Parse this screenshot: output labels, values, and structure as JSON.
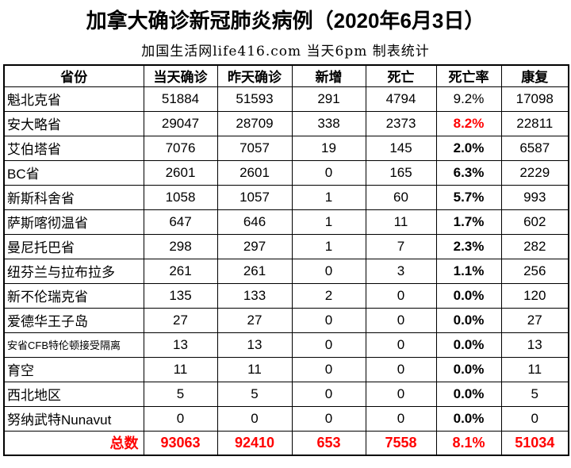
{
  "page": {
    "title": "加拿大确诊新冠肺炎病例（2020年6月3日）",
    "subtitle": "加国生活网life416.com 当天6pm 制表统计"
  },
  "colors": {
    "highlight_red": "#ff0000",
    "text": "#000000",
    "border": "#000000",
    "background": "#ffffff"
  },
  "table": {
    "columns": [
      {
        "key": "province",
        "label": "省份"
      },
      {
        "key": "today",
        "label": "当天确诊"
      },
      {
        "key": "yesterday",
        "label": "昨天确诊"
      },
      {
        "key": "new",
        "label": "新增"
      },
      {
        "key": "deaths",
        "label": "死亡"
      },
      {
        "key": "death_rate",
        "label": "死亡率"
      },
      {
        "key": "recovered",
        "label": "康复"
      }
    ],
    "rows": [
      {
        "province": "魁北克省",
        "today": "51884",
        "yesterday": "51593",
        "new": "291",
        "deaths": "4794",
        "death_rate": "9.2%",
        "recovered": "17098",
        "rate_emphasis": "regular"
      },
      {
        "province": "安大略省",
        "today": "29047",
        "yesterday": "28709",
        "new": "338",
        "deaths": "2373",
        "death_rate": "8.2%",
        "recovered": "22811",
        "rate_emphasis": "red"
      },
      {
        "province": "艾伯塔省",
        "today": "7076",
        "yesterday": "7057",
        "new": "19",
        "deaths": "145",
        "death_rate": "2.0%",
        "recovered": "6587",
        "rate_emphasis": "bold"
      },
      {
        "province": "BC省",
        "today": "2601",
        "yesterday": "2601",
        "new": "0",
        "deaths": "165",
        "death_rate": "6.3%",
        "recovered": "2229",
        "rate_emphasis": "bold"
      },
      {
        "province": "新斯科舍省",
        "today": "1058",
        "yesterday": "1057",
        "new": "1",
        "deaths": "60",
        "death_rate": "5.7%",
        "recovered": "993",
        "rate_emphasis": "bold"
      },
      {
        "province": "萨斯喀彻温省",
        "today": "647",
        "yesterday": "646",
        "new": "1",
        "deaths": "11",
        "death_rate": "1.7%",
        "recovered": "602",
        "rate_emphasis": "bold"
      },
      {
        "province": "曼尼托巴省",
        "today": "298",
        "yesterday": "297",
        "new": "1",
        "deaths": "7",
        "death_rate": "2.3%",
        "recovered": "282",
        "rate_emphasis": "bold"
      },
      {
        "province": "纽芬兰与拉布拉多",
        "today": "261",
        "yesterday": "261",
        "new": "0",
        "deaths": "3",
        "death_rate": "1.1%",
        "recovered": "256",
        "rate_emphasis": "bold"
      },
      {
        "province": "新不伦瑞克省",
        "today": "135",
        "yesterday": "133",
        "new": "2",
        "deaths": "0",
        "death_rate": "0.0%",
        "recovered": "120",
        "rate_emphasis": "bold"
      },
      {
        "province": "爱德华王子岛",
        "today": "27",
        "yesterday": "27",
        "new": "0",
        "deaths": "0",
        "death_rate": "0.0%",
        "recovered": "27",
        "rate_emphasis": "bold"
      },
      {
        "province": "安省CFB特伦顿接受隔离",
        "today": "13",
        "yesterday": "13",
        "new": "0",
        "deaths": "0",
        "death_rate": "0.0%",
        "recovered": "13",
        "rate_emphasis": "bold",
        "small": true
      },
      {
        "province": "育空",
        "today": "11",
        "yesterday": "11",
        "new": "0",
        "deaths": "0",
        "death_rate": "0.0%",
        "recovered": "11",
        "rate_emphasis": "bold"
      },
      {
        "province": "西北地区",
        "today": "5",
        "yesterday": "5",
        "new": "0",
        "deaths": "0",
        "death_rate": "0.0%",
        "recovered": "5",
        "rate_emphasis": "bold"
      },
      {
        "province": "努纳武特Nunavut",
        "today": "0",
        "yesterday": "0",
        "new": "0",
        "deaths": "0",
        "death_rate": "0.0%",
        "recovered": "0",
        "rate_emphasis": "bold"
      }
    ],
    "total_row": {
      "province": "总数",
      "today": "93063",
      "yesterday": "92410",
      "new": "653",
      "deaths": "7558",
      "death_rate": "8.1%",
      "recovered": "51034"
    }
  }
}
